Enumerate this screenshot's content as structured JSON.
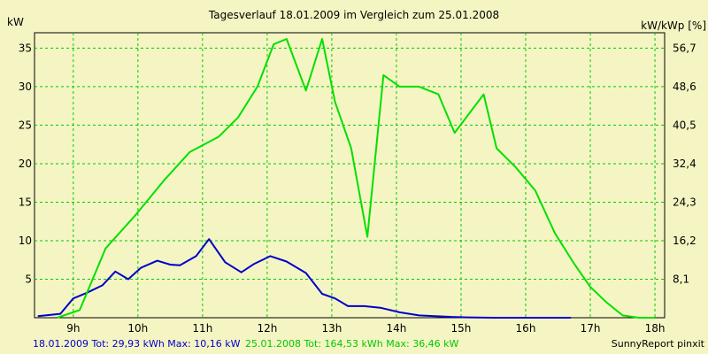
{
  "chart_data": {
    "type": "line",
    "title": "Tagesverlauf 18.01.2009 im Vergleich zum 25.01.2008",
    "ylabel": "kW",
    "ylabel_right": "kW/kWp [%]",
    "ylim": [
      0,
      37
    ],
    "yticks": [
      5,
      10,
      15,
      20,
      25,
      30,
      35
    ],
    "yticks_right_labels": [
      "8,1",
      "16,2",
      "24,3",
      "32,4",
      "40,5",
      "48,6",
      "56,7"
    ],
    "xlim": [
      8.4,
      18.15
    ],
    "xticks": [
      9,
      10,
      11,
      12,
      13,
      14,
      15,
      16,
      17,
      18
    ],
    "xtick_labels": [
      "9h",
      "10h",
      "11h",
      "12h",
      "13h",
      "14h",
      "15h",
      "16h",
      "17h",
      "18h"
    ],
    "grid": true,
    "series": [
      {
        "name": "18.01.2009",
        "color": "#0000cc",
        "x": [
          8.45,
          8.8,
          9.0,
          9.2,
          9.45,
          9.65,
          9.85,
          10.05,
          10.3,
          10.5,
          10.65,
          10.9,
          11.1,
          11.35,
          11.6,
          11.8,
          12.05,
          12.3,
          12.6,
          12.85,
          13.05,
          13.25,
          13.5,
          13.75,
          14.05,
          14.35,
          14.6,
          14.85,
          15.1,
          15.5,
          16.0,
          16.7
        ],
        "values": [
          0.2,
          0.5,
          2.5,
          3.2,
          4.2,
          6.0,
          5.0,
          6.5,
          7.4,
          6.9,
          6.8,
          8.0,
          10.2,
          7.2,
          5.9,
          7.0,
          8.0,
          7.3,
          5.8,
          3.1,
          2.5,
          1.5,
          1.5,
          1.3,
          0.7,
          0.3,
          0.2,
          0.1,
          0.05,
          0.0,
          0.0,
          0.0
        ]
      },
      {
        "name": "25.01.2008",
        "color": "#00e000",
        "x": [
          8.75,
          9.1,
          9.5,
          9.95,
          10.4,
          10.8,
          11.25,
          11.55,
          11.85,
          12.1,
          12.3,
          12.6,
          12.85,
          13.05,
          13.3,
          13.55,
          13.8,
          14.05,
          14.35,
          14.65,
          14.9,
          15.35,
          15.55,
          15.85,
          16.15,
          16.45,
          16.75,
          17.0,
          17.25,
          17.5,
          17.75,
          18.0
        ],
        "values": [
          0.0,
          1.0,
          9.0,
          13.2,
          17.8,
          21.5,
          23.5,
          26.0,
          30.0,
          35.5,
          36.2,
          29.5,
          36.2,
          28.0,
          22.0,
          10.5,
          31.5,
          30.0,
          30.0,
          29.0,
          24.0,
          29.0,
          22.0,
          19.5,
          16.5,
          11.0,
          7.0,
          4.0,
          2.0,
          0.3,
          0.0,
          0.0
        ]
      }
    ],
    "legend": {
      "s1_name": "18.01.2009",
      "s1_text": "Tot: 29,93 kWh Max: 10,16 kW",
      "s2_name": "25.01.2008",
      "s2_text": "Tot: 164,53 kWh Max: 36,46 kW"
    },
    "credit": "SunnyReport pinxit"
  }
}
